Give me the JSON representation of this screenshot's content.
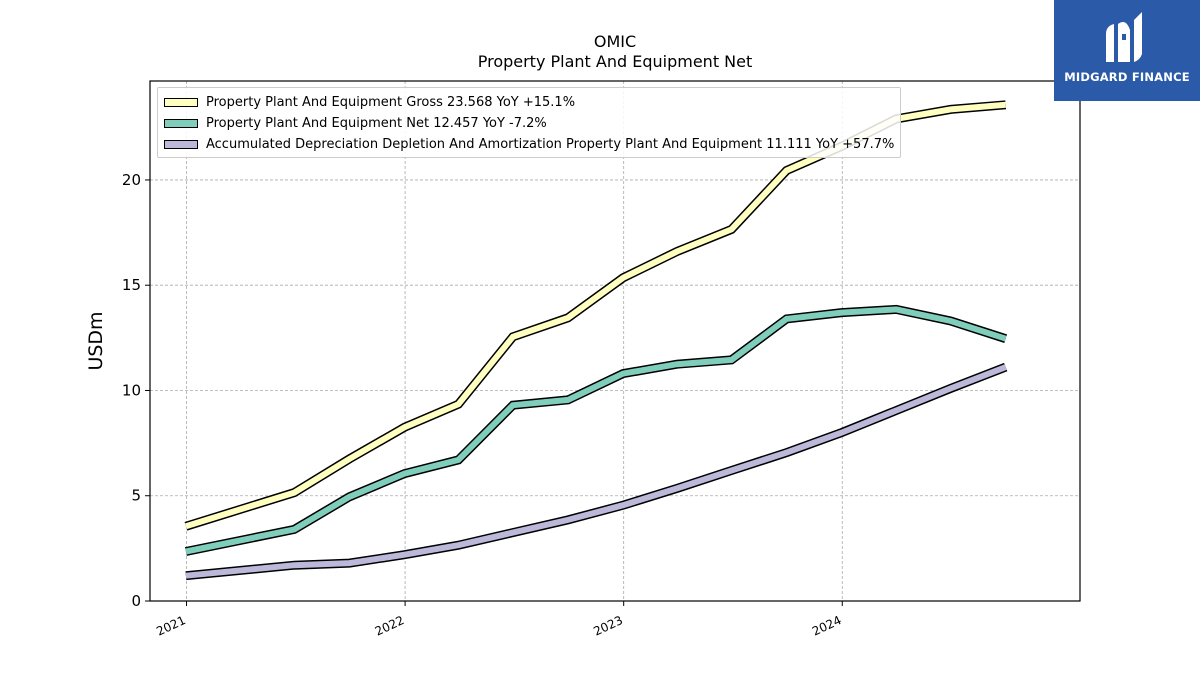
{
  "chart_data": {
    "type": "line",
    "title": "OMIC",
    "subtitle": "Property Plant And Equipment Net",
    "ylabel": "USDm",
    "xlabel": "",
    "ylim": [
      0,
      24.7
    ],
    "xlim": [
      "2020-11-01",
      "2025-02-01"
    ],
    "yticks": [
      0,
      5,
      10,
      15,
      20
    ],
    "xticks": [
      {
        "date": "2021-01-01",
        "label": "2021"
      },
      {
        "date": "2022-01-01",
        "label": "2022"
      },
      {
        "date": "2023-01-01",
        "label": "2023"
      },
      {
        "date": "2024-01-01",
        "label": "2024"
      }
    ],
    "grid": true,
    "legend_position": "top-left",
    "series": [
      {
        "name": "Property Plant And Equipment Gross",
        "legend": "Property Plant And Equipment Gross  23.568 YoY +15.1%",
        "color": "#ffffbf",
        "points": [
          [
            "2020-12-31",
            3.55
          ],
          [
            "2021-06-30",
            5.15
          ],
          [
            "2021-09-30",
            6.75
          ],
          [
            "2021-12-31",
            8.25
          ],
          [
            "2022-03-31",
            9.35
          ],
          [
            "2022-06-30",
            12.55
          ],
          [
            "2022-09-30",
            13.45
          ],
          [
            "2022-12-31",
            15.35
          ],
          [
            "2023-03-31",
            16.6
          ],
          [
            "2023-06-30",
            17.65
          ],
          [
            "2023-09-30",
            20.45
          ],
          [
            "2023-12-31",
            21.6
          ],
          [
            "2024-03-31",
            22.9
          ],
          [
            "2024-06-30",
            23.35
          ],
          [
            "2024-09-30",
            23.568
          ]
        ]
      },
      {
        "name": "Property Plant And Equipment Net",
        "legend": "Property Plant And Equipment Net  12.457 YoY -7.2%",
        "color": "#7fcdbb",
        "points": [
          [
            "2020-12-31",
            2.35
          ],
          [
            "2021-06-30",
            3.4
          ],
          [
            "2021-09-30",
            4.95
          ],
          [
            "2021-12-31",
            6.05
          ],
          [
            "2022-03-31",
            6.7
          ],
          [
            "2022-06-30",
            9.3
          ],
          [
            "2022-09-30",
            9.55
          ],
          [
            "2022-12-31",
            10.8
          ],
          [
            "2023-03-31",
            11.25
          ],
          [
            "2023-06-30",
            11.45
          ],
          [
            "2023-09-30",
            13.4
          ],
          [
            "2023-12-31",
            13.7
          ],
          [
            "2024-03-31",
            13.85
          ],
          [
            "2024-06-30",
            13.3
          ],
          [
            "2024-09-30",
            12.457
          ]
        ]
      },
      {
        "name": "Accumulated Depreciation Depletion And Amortization Property Plant And Equipment",
        "legend": "Accumulated Depreciation Depletion And Amortization Property Plant And Equipment  11.111 YoY +57.7%",
        "color": "#bcb8d9",
        "points": [
          [
            "2020-12-31",
            1.2
          ],
          [
            "2021-06-30",
            1.7
          ],
          [
            "2021-09-30",
            1.8
          ],
          [
            "2021-12-31",
            2.2
          ],
          [
            "2022-03-31",
            2.65
          ],
          [
            "2022-06-30",
            3.25
          ],
          [
            "2022-09-30",
            3.85
          ],
          [
            "2022-12-31",
            4.55
          ],
          [
            "2023-03-31",
            5.35
          ],
          [
            "2023-06-30",
            6.2
          ],
          [
            "2023-09-30",
            7.05
          ],
          [
            "2023-12-31",
            8.0
          ],
          [
            "2024-03-31",
            9.05
          ],
          [
            "2024-06-30",
            10.1
          ],
          [
            "2024-09-30",
            11.111
          ]
        ]
      }
    ]
  },
  "logo": {
    "text": "MIDGARD FINANCE",
    "background": "#2a5aa8"
  }
}
